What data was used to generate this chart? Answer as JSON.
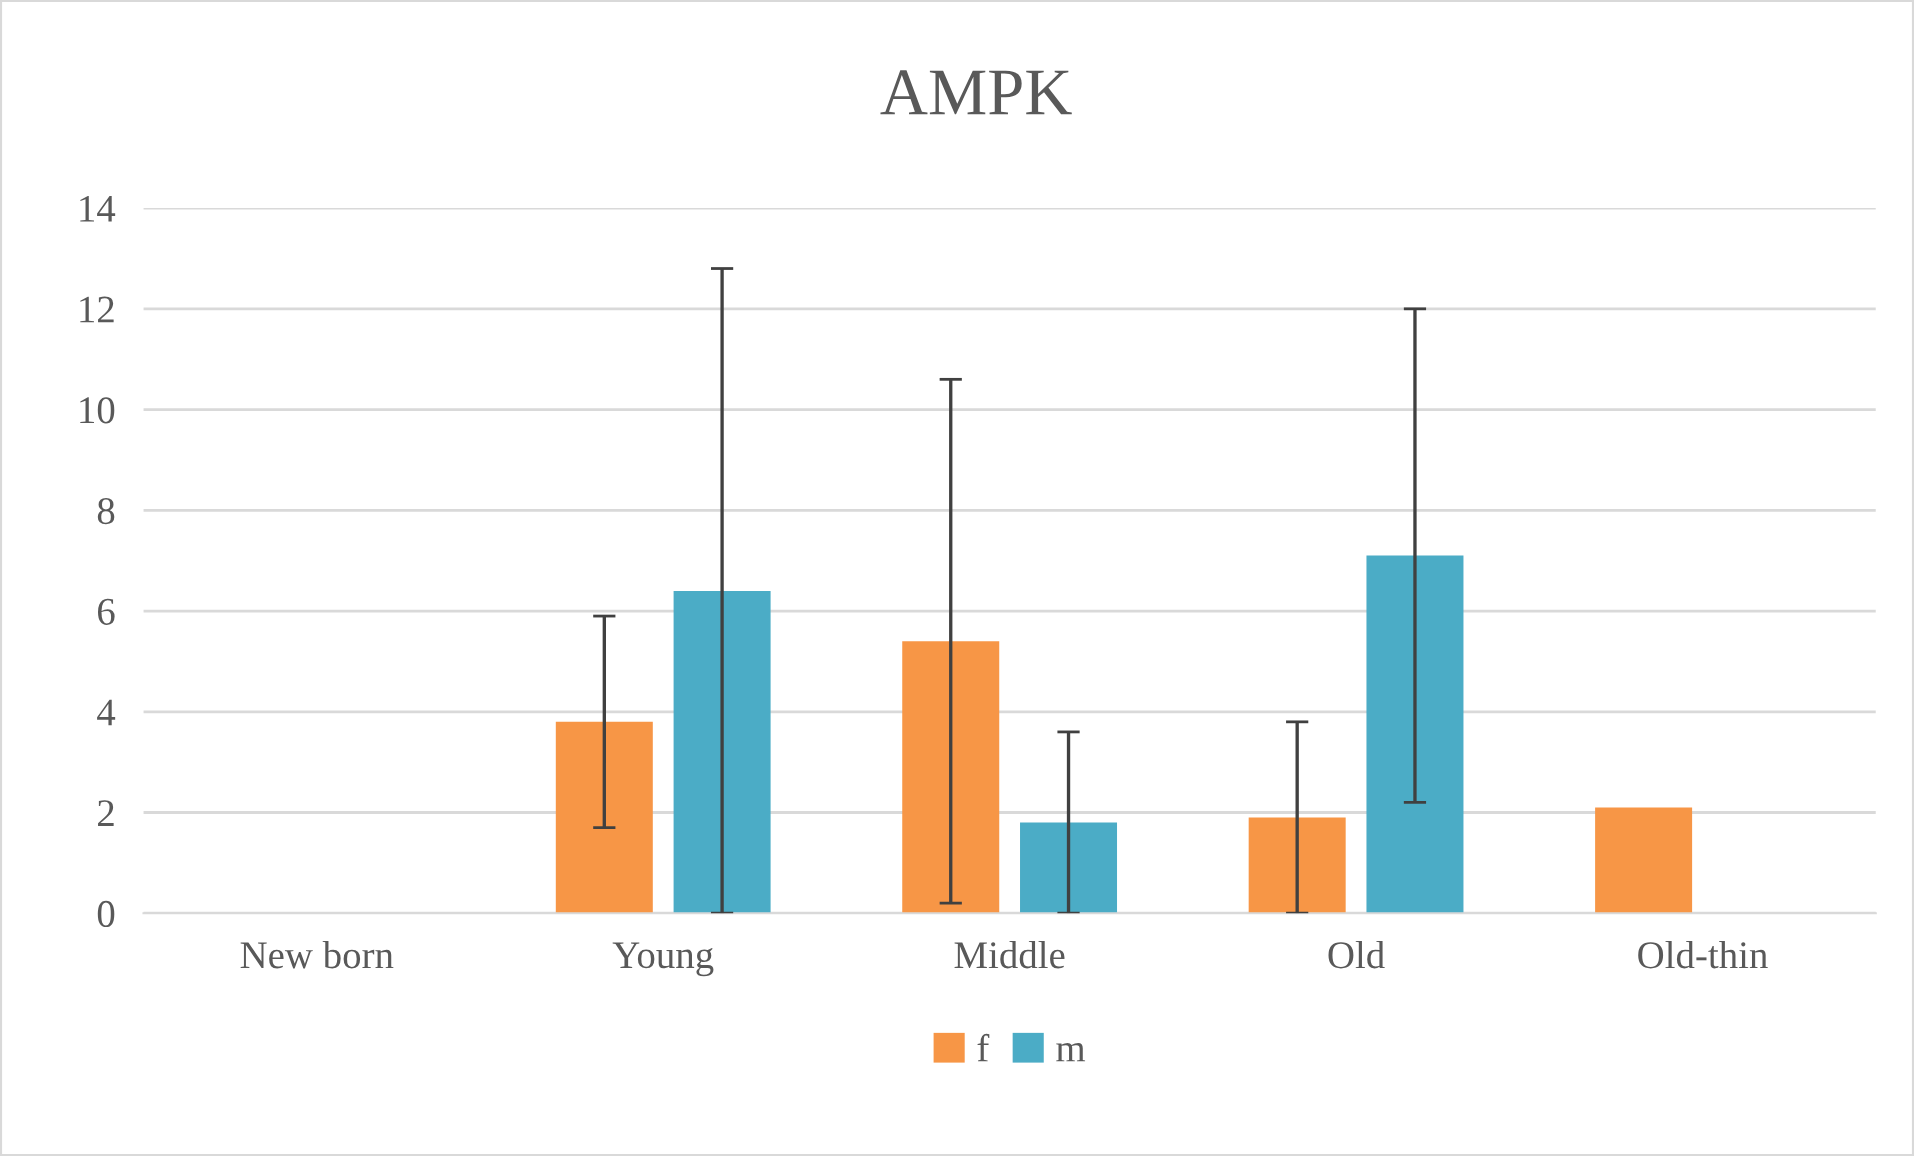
{
  "chart_data": {
    "type": "bar",
    "title": "AMPK",
    "categories": [
      "New born",
      "Young",
      "Middle",
      "Old",
      "Old-thin"
    ],
    "series": [
      {
        "name": "f",
        "color": "#f79646",
        "values": [
          null,
          3.8,
          5.4,
          1.9,
          2.1
        ],
        "errors": [
          null,
          2.1,
          5.2,
          1.9,
          null
        ]
      },
      {
        "name": "m",
        "color": "#4bacc6",
        "values": [
          null,
          6.4,
          1.8,
          7.1,
          null
        ],
        "errors": [
          null,
          6.4,
          1.8,
          4.9,
          null
        ]
      }
    ],
    "ylim": [
      0,
      14
    ],
    "yticks": [
      0,
      2,
      4,
      6,
      8,
      10,
      12,
      14
    ],
    "grid": "y",
    "legend": "bottom"
  }
}
